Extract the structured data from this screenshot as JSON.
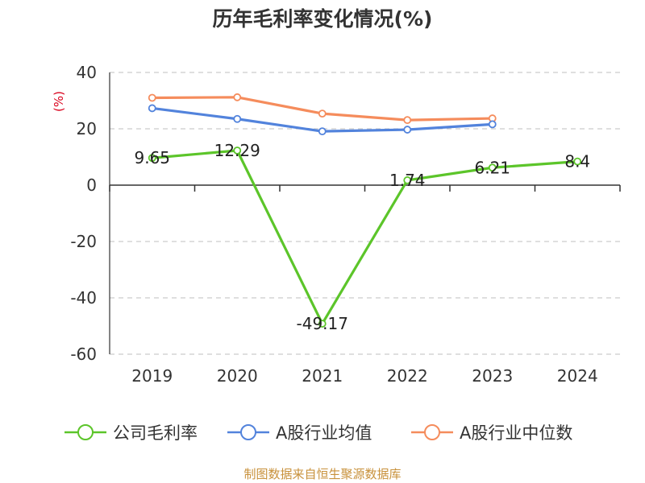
{
  "chart_data": {
    "type": "line",
    "title": "历年毛利率变化情况(%)",
    "ylabel": "(%)",
    "xlabel": "",
    "categories": [
      "2019",
      "2020",
      "2021",
      "2022",
      "2023",
      "2024"
    ],
    "ylim": [
      -60,
      40
    ],
    "yticks": [
      40,
      20,
      0,
      -20,
      -40,
      -60
    ],
    "grid": true,
    "legend_position": "bottom",
    "series": [
      {
        "name": "公司毛利率",
        "color": "#5cc52a",
        "values": [
          9.65,
          12.29,
          -49.17,
          1.74,
          6.21,
          8.4
        ],
        "labels": [
          "9.65",
          "12.29",
          "-49.17",
          "1.74",
          "6.21",
          "8.4"
        ]
      },
      {
        "name": "A股行业均值",
        "color": "#5283dc",
        "values": [
          27.3,
          23.5,
          19.1,
          19.7,
          21.6,
          null
        ]
      },
      {
        "name": "A股行业中位数",
        "color": "#f58c5c",
        "values": [
          31.0,
          31.2,
          25.4,
          23.1,
          23.7,
          null
        ]
      }
    ]
  },
  "footer": {
    "source": "制图数据来自恒生聚源数据库"
  }
}
